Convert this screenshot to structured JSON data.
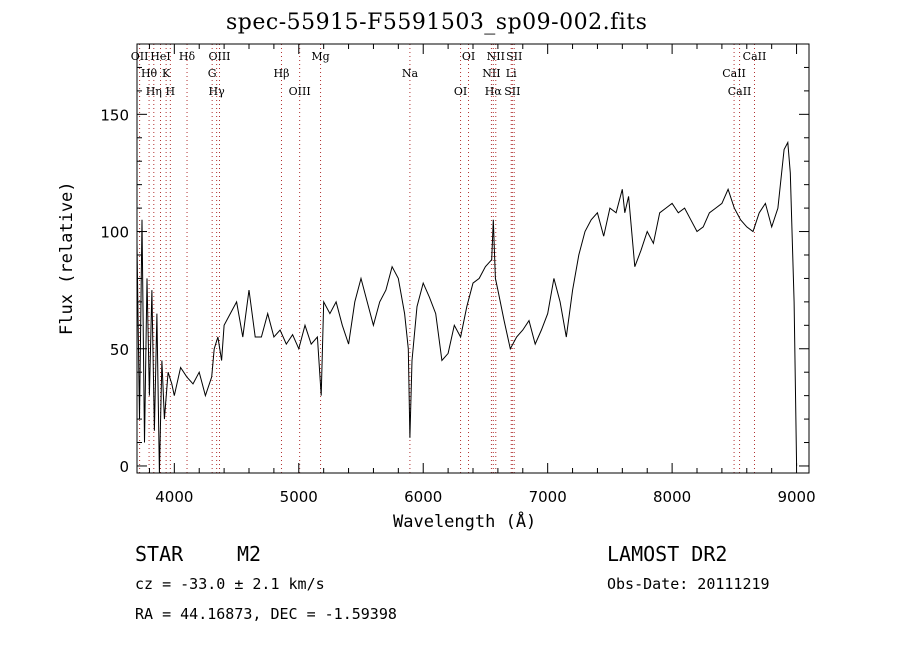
{
  "chart_data": {
    "type": "line",
    "title": "spec-55915-F5591503_sp09-002.fits",
    "xlabel": "Wavelength (Å)",
    "ylabel": "Flux (relative)",
    "xlim": [
      3700,
      9100
    ],
    "ylim": [
      -3,
      180
    ],
    "xticks": [
      4000,
      5000,
      6000,
      7000,
      8000,
      9000
    ],
    "yticks": [
      0,
      50,
      100,
      150
    ],
    "grid": false,
    "line_color": "#000000",
    "marker_color": "#b03030",
    "series": [
      {
        "x": [
          3700,
          3720,
          3740,
          3760,
          3780,
          3800,
          3820,
          3840,
          3860,
          3880,
          3900,
          3920,
          3950,
          3980,
          4000,
          4050,
          4100,
          4150,
          4200,
          4250,
          4300,
          4320,
          4350,
          4380,
          4400,
          4450,
          4500,
          4550,
          4600,
          4650,
          4700,
          4750,
          4800,
          4850,
          4900,
          4950,
          5000,
          5050,
          5100,
          5150,
          5180,
          5200,
          5250,
          5300,
          5350,
          5400,
          5450,
          5500,
          5550,
          5600,
          5650,
          5700,
          5750,
          5800,
          5850,
          5880,
          5893,
          5910,
          5950,
          6000,
          6050,
          6100,
          6150,
          6200,
          6250,
          6300,
          6350,
          6400,
          6450,
          6500,
          6550,
          6563,
          6580,
          6600,
          6650,
          6700,
          6750,
          6800,
          6850,
          6900,
          6950,
          7000,
          7050,
          7100,
          7150,
          7200,
          7250,
          7300,
          7350,
          7400,
          7450,
          7500,
          7550,
          7600,
          7620,
          7650,
          7700,
          7750,
          7800,
          7850,
          7900,
          7950,
          8000,
          8050,
          8100,
          8150,
          8200,
          8250,
          8300,
          8350,
          8400,
          8450,
          8500,
          8550,
          8600,
          8650,
          8700,
          8750,
          8800,
          8850,
          8900,
          8930,
          8950,
          8980,
          9000
        ],
        "y": [
          95,
          20,
          105,
          10,
          80,
          30,
          75,
          15,
          65,
          -5,
          45,
          20,
          40,
          35,
          30,
          42,
          38,
          35,
          40,
          30,
          38,
          50,
          55,
          45,
          60,
          65,
          70,
          55,
          75,
          55,
          55,
          65,
          55,
          58,
          52,
          56,
          50,
          60,
          52,
          55,
          30,
          70,
          65,
          70,
          60,
          52,
          70,
          80,
          70,
          60,
          70,
          75,
          85,
          80,
          65,
          50,
          12,
          45,
          68,
          78,
          72,
          65,
          45,
          48,
          60,
          55,
          68,
          78,
          80,
          85,
          88,
          105,
          80,
          75,
          62,
          50,
          55,
          58,
          62,
          52,
          58,
          65,
          80,
          70,
          55,
          75,
          90,
          100,
          105,
          108,
          98,
          110,
          108,
          118,
          108,
          115,
          85,
          92,
          100,
          95,
          108,
          110,
          112,
          108,
          110,
          105,
          100,
          102,
          108,
          110,
          112,
          118,
          110,
          105,
          102,
          100,
          108,
          112,
          102,
          110,
          135,
          138,
          125,
          70,
          0
        ],
        "markers": [
          {
            "x": 3721,
            "label": "OII"
          },
          {
            "x": 3797,
            "label": "Hθ"
          },
          {
            "x": 3835,
            "label": "Hη"
          },
          {
            "x": 3889,
            "label": "HeI"
          },
          {
            "x": 3934,
            "label": "K"
          },
          {
            "x": 3968,
            "label": "H"
          },
          {
            "x": 4102,
            "label": "Hδ"
          },
          {
            "x": 4304,
            "label": "G"
          },
          {
            "x": 4340,
            "label": "Hγ"
          },
          {
            "x": 4363,
            "label": "OIII"
          },
          {
            "x": 4861,
            "label": "Hβ"
          },
          {
            "x": 5007,
            "label": "OIII"
          },
          {
            "x": 5175,
            "label": "Mg"
          },
          {
            "x": 5893,
            "label": "Na"
          },
          {
            "x": 6300,
            "label": "OI"
          },
          {
            "x": 6364,
            "label": "OI"
          },
          {
            "x": 6548,
            "label": "NII"
          },
          {
            "x": 6563,
            "label": "Hα"
          },
          {
            "x": 6583,
            "label": "NII"
          },
          {
            "x": 6707,
            "label": "Li"
          },
          {
            "x": 6716,
            "label": "SII"
          },
          {
            "x": 6731,
            "label": "SII"
          },
          {
            "x": 8498,
            "label": "CaII"
          },
          {
            "x": 8542,
            "label": "CaII"
          },
          {
            "x": 8662,
            "label": "CaII"
          }
        ]
      }
    ]
  },
  "info": {
    "class": "STAR",
    "subclass": "M2",
    "survey": "LAMOST DR2",
    "cz": "cz = -33.0 ± 2.1 km/s",
    "obs_date": "Obs-Date: 20111219",
    "radec": "RA =  44.16873, DEC =  -1.59398"
  }
}
